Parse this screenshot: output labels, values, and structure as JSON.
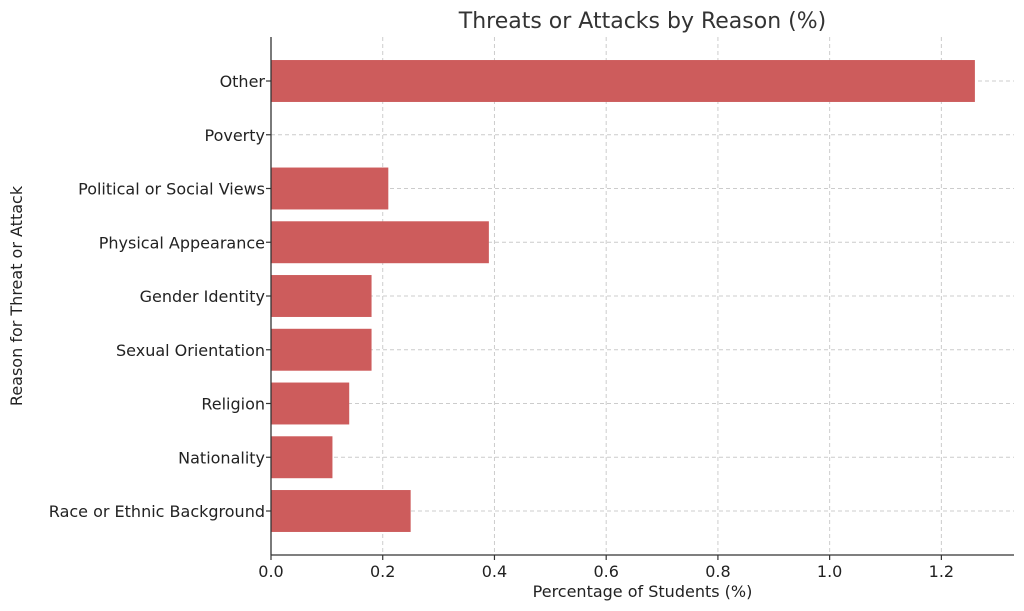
{
  "chart_data": {
    "type": "bar",
    "orientation": "horizontal",
    "title": "Threats or Attacks by Reason (%)",
    "xlabel": "Percentage of Students (%)",
    "ylabel": "Reason for Threat or Attack",
    "categories": [
      "Race or Ethnic Background",
      "Nationality",
      "Religion",
      "Sexual Orientation",
      "Gender Identity",
      "Physical Appearance",
      "Political or Social Views",
      "Poverty",
      "Other"
    ],
    "values": [
      0.25,
      0.11,
      0.14,
      0.18,
      0.18,
      0.39,
      0.21,
      0.0,
      1.26
    ],
    "xlim": [
      0.0,
      1.33
    ],
    "xticks": [
      0.0,
      0.2,
      0.4,
      0.6,
      0.8,
      1.0,
      1.2
    ],
    "xtick_labels": [
      "0.0",
      "0.2",
      "0.4",
      "0.6",
      "0.8",
      "1.0",
      "1.2"
    ],
    "grid": true,
    "bar_color": "#cd5c5c"
  }
}
